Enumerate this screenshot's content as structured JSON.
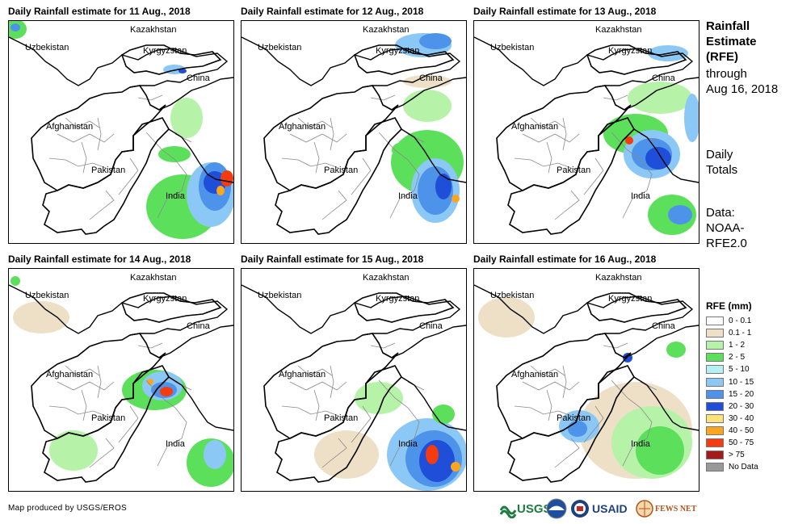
{
  "panels": [
    {
      "title": "Daily Rainfall estimate for 11 Aug., 2018"
    },
    {
      "title": "Daily Rainfall estimate for 12 Aug., 2018"
    },
    {
      "title": "Daily Rainfall estimate for 13 Aug., 2018"
    },
    {
      "title": "Daily Rainfall estimate for 14 Aug., 2018"
    },
    {
      "title": "Daily Rainfall estimate for 15 Aug., 2018"
    },
    {
      "title": "Daily Rainfall estimate for 16 Aug., 2018"
    }
  ],
  "place_labels": {
    "kazakhstan": "Kazakhstan",
    "uzbekistan": "Uzbekistan",
    "kyrgyzstan": "Kyrgyzstan",
    "china": "China",
    "afghanistan": "Afghanistan",
    "pakistan": "Pakistan",
    "india": "India"
  },
  "side_panel": {
    "line1": "Rainfall",
    "line2": "Estimate",
    "line3": "(RFE)",
    "line4": "through",
    "line5": "Aug 16, 2018",
    "daily1": "Daily",
    "daily2": "Totals",
    "data1": "Data:",
    "data2": "NOAA-",
    "data3": "RFE2.0"
  },
  "legend": {
    "title": "RFE (mm)",
    "items": [
      {
        "label": "0 - 0.1",
        "color": "#ffffff"
      },
      {
        "label": "0.1 - 1",
        "color": "#ede0c6"
      },
      {
        "label": "1 - 2",
        "color": "#b6f3a8"
      },
      {
        "label": "2 - 5",
        "color": "#5ce05c"
      },
      {
        "label": "5 - 10",
        "color": "#b5f0f5"
      },
      {
        "label": "10 - 15",
        "color": "#8cc8f5"
      },
      {
        "label": "15 - 20",
        "color": "#4d93ea"
      },
      {
        "label": "20 - 30",
        "color": "#1f4fd8"
      },
      {
        "label": "30 - 40",
        "color": "#fbe27a"
      },
      {
        "label": "40 - 50",
        "color": "#fca51e"
      },
      {
        "label": "50 - 75",
        "color": "#f43c10"
      },
      {
        "label": "> 75",
        "color": "#a51b1b"
      },
      {
        "label": "No Data",
        "color": "#999999"
      }
    ]
  },
  "credit": "Map produced by USGS/EROS",
  "logos": {
    "usgs": "USGS",
    "usaid": "USAID",
    "fewsnet": "FEWS NET"
  }
}
